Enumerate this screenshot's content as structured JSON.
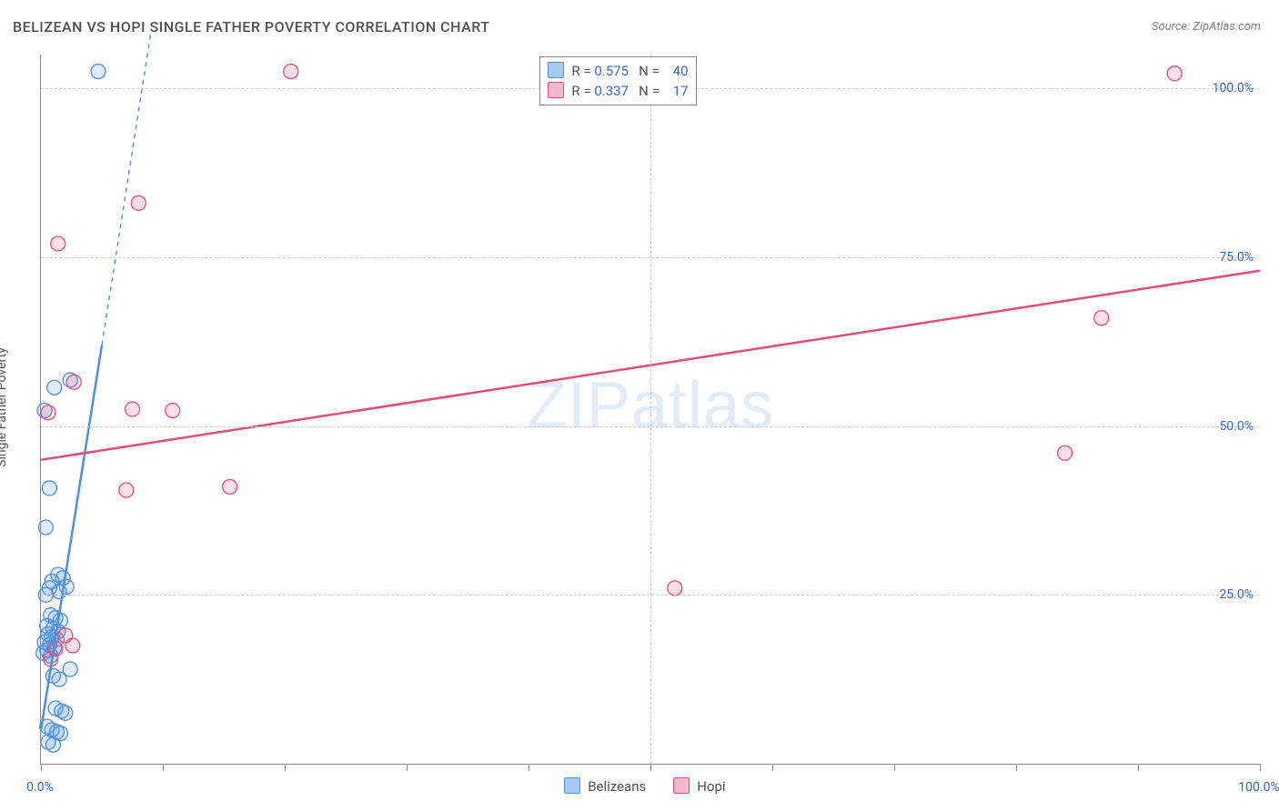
{
  "title": "BELIZEAN VS HOPI SINGLE FATHER POVERTY CORRELATION CHART",
  "source_label": "Source: ZipAtlas.com",
  "y_axis_label": "Single Father Poverty",
  "watermark": "ZIPatlas",
  "chart": {
    "type": "scatter",
    "xlim": [
      0,
      100
    ],
    "ylim": [
      0,
      105
    ],
    "x_ticks": [
      0,
      50,
      100
    ],
    "x_tick_labels": [
      "0.0%",
      "",
      "100.0%"
    ],
    "x_minor_ticks": [
      10,
      20,
      30,
      40,
      60,
      70,
      80,
      90
    ],
    "y_ticks": [
      25,
      50,
      75,
      100
    ],
    "y_tick_labels": [
      "25.0%",
      "50.0%",
      "75.0%",
      "100.0%"
    ],
    "background_color": "#ffffff",
    "grid_color": "#cccccc",
    "axis_color": "#888888",
    "tick_label_color": "#3366cc",
    "title_color": "#505050",
    "marker_radius": 8,
    "marker_stroke_width": 1.3,
    "marker_fill_opacity": 0.18,
    "trend_line_width": 2.5,
    "series": [
      {
        "name": "Belizeans",
        "color": "#4f8fdd",
        "fill": "#a9c9f0",
        "R": "0.575",
        "N": "40",
        "points": [
          [
            4.7,
            102.5
          ],
          [
            1.1,
            55.7
          ],
          [
            2.4,
            56.8
          ],
          [
            0.3,
            52.3
          ],
          [
            0.7,
            40.8
          ],
          [
            0.4,
            35.0
          ],
          [
            1.4,
            28.0
          ],
          [
            1.8,
            27.5
          ],
          [
            0.9,
            27.0
          ],
          [
            2.1,
            26.2
          ],
          [
            0.7,
            26.0
          ],
          [
            1.5,
            25.5
          ],
          [
            0.4,
            25.0
          ],
          [
            0.8,
            22.0
          ],
          [
            1.2,
            21.6
          ],
          [
            1.6,
            21.2
          ],
          [
            0.5,
            20.4
          ],
          [
            1.0,
            20.0
          ],
          [
            1.4,
            19.6
          ],
          [
            0.6,
            19.2
          ],
          [
            0.9,
            18.8
          ],
          [
            1.3,
            18.4
          ],
          [
            0.3,
            18.0
          ],
          [
            0.7,
            17.6
          ],
          [
            1.1,
            17.2
          ],
          [
            0.5,
            16.8
          ],
          [
            0.2,
            16.4
          ],
          [
            0.8,
            16.0
          ],
          [
            1.0,
            13.0
          ],
          [
            1.5,
            12.5
          ],
          [
            2.4,
            14.0
          ],
          [
            1.2,
            8.2
          ],
          [
            1.7,
            7.8
          ],
          [
            2.0,
            7.5
          ],
          [
            0.5,
            5.5
          ],
          [
            0.9,
            5.0
          ],
          [
            1.3,
            4.7
          ],
          [
            1.6,
            4.5
          ],
          [
            0.6,
            3.2
          ],
          [
            1.0,
            2.8
          ]
        ],
        "trend": {
          "x1": 0,
          "y1": 5,
          "x2": 5,
          "y2": 62,
          "dash_x2": 9,
          "dash_y2": 108
        }
      },
      {
        "name": "Hopi",
        "color": "#e34d7b",
        "fill": "#f5b9ce",
        "R": "0.337",
        "N": "17",
        "points": [
          [
            20.5,
            102.5
          ],
          [
            93.0,
            102.2
          ],
          [
            8.0,
            83.0
          ],
          [
            1.4,
            77.0
          ],
          [
            87.0,
            66.0
          ],
          [
            2.7,
            56.5
          ],
          [
            0.6,
            52.0
          ],
          [
            7.5,
            52.5
          ],
          [
            10.8,
            52.3
          ],
          [
            84.0,
            46.0
          ],
          [
            7.0,
            40.5
          ],
          [
            15.5,
            41.0
          ],
          [
            52.0,
            26.0
          ],
          [
            2.0,
            19.0
          ],
          [
            2.6,
            17.5
          ],
          [
            1.2,
            17.0
          ],
          [
            0.8,
            15.5
          ]
        ],
        "trend": {
          "x1": 0,
          "y1": 45,
          "x2": 100,
          "y2": 73
        }
      }
    ]
  },
  "legend_top": {
    "border_color": "#888888",
    "rows": [
      {
        "swatch_fill": "#a9c9f0",
        "swatch_stroke": "#4f8fdd",
        "R": "0.575",
        "N": "40"
      },
      {
        "swatch_fill": "#f5b9ce",
        "swatch_stroke": "#e34d7b",
        "R": "0.337",
        "N": "17"
      }
    ]
  },
  "legend_bottom": {
    "items": [
      {
        "swatch_fill": "#a9c9f0",
        "swatch_stroke": "#4f8fdd",
        "label": "Belizeans"
      },
      {
        "swatch_fill": "#f5b9ce",
        "swatch_stroke": "#e34d7b",
        "label": "Hopi"
      }
    ]
  }
}
